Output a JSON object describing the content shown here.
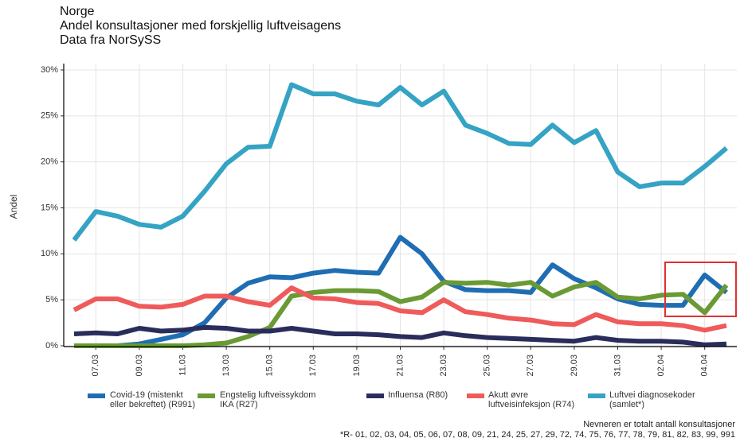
{
  "chart_data": {
    "type": "line",
    "title": "Norge",
    "subtitle": "Andel konsultasjoner med forskjellig luftveisagens",
    "source": "Data fra NorSySS",
    "y_label": "Andel",
    "categories": [
      null,
      "07.03",
      null,
      "09.03",
      null,
      "11.03",
      null,
      "13.03",
      null,
      "15.03",
      null,
      "17.03",
      null,
      "19.03",
      null,
      "21.03",
      null,
      "23.03",
      null,
      "25.03",
      null,
      "27.03",
      null,
      "29.03",
      null,
      "31.03",
      null,
      "02.04",
      null,
      "04.04",
      null
    ],
    "ylim": [
      0,
      30
    ],
    "yticks": [
      {
        "value": 0,
        "label": "0%"
      },
      {
        "value": 5,
        "label": "5%"
      },
      {
        "value": 10,
        "label": "10%"
      },
      {
        "value": 15,
        "label": "15%"
      },
      {
        "value": 20,
        "label": "20%"
      },
      {
        "value": 25,
        "label": "25%"
      },
      {
        "value": 30,
        "label": "30%"
      }
    ],
    "grid": true,
    "series": [
      {
        "name": "Covid-19 (mistenkt\neller bekreftet) (R991)",
        "color": "#1f6db3",
        "values": [
          0,
          0,
          0,
          0.2,
          0.7,
          1.2,
          2.5,
          5.2,
          6.8,
          7.5,
          7.4,
          7.9,
          8.2,
          8.0,
          7.9,
          11.8,
          10.0,
          7.0,
          6.1,
          6.0,
          6.0,
          5.8,
          8.8,
          7.3,
          6.3,
          5.1,
          4.5,
          4.4,
          4.4,
          7.7,
          5.8
        ]
      },
      {
        "name": "Engstelig luftveissykdom\nIKA (R27)",
        "color": "#6a9a34",
        "values": [
          0,
          0,
          0,
          0,
          0,
          0,
          0.1,
          0.3,
          1.0,
          2.0,
          5.4,
          5.8,
          6.0,
          6.0,
          5.9,
          4.8,
          5.3,
          6.9,
          6.8,
          6.9,
          6.6,
          6.9,
          5.4,
          6.4,
          6.9,
          5.3,
          5.1,
          5.5,
          5.6,
          3.6,
          6.6
        ]
      },
      {
        "name": "Influensa (R80)",
        "color": "#2a2d5c",
        "values": [
          1.3,
          1.4,
          1.3,
          1.9,
          1.6,
          1.7,
          2.0,
          1.9,
          1.6,
          1.6,
          1.9,
          1.6,
          1.3,
          1.3,
          1.2,
          1.0,
          0.9,
          1.4,
          1.1,
          0.9,
          0.8,
          0.7,
          0.6,
          0.5,
          0.9,
          0.6,
          0.5,
          0.5,
          0.4,
          0.1,
          0.2
        ]
      },
      {
        "name": "Akutt øvre\nluftveisinfeksjon (R74)",
        "color": "#ef5b5b",
        "values": [
          3.9,
          5.1,
          5.1,
          4.3,
          4.2,
          4.5,
          5.4,
          5.4,
          4.8,
          4.4,
          6.3,
          5.2,
          5.1,
          4.7,
          4.6,
          3.8,
          3.6,
          5.0,
          3.7,
          3.4,
          3.0,
          2.8,
          2.4,
          2.3,
          3.4,
          2.6,
          2.4,
          2.4,
          2.2,
          1.7,
          2.2
        ]
      },
      {
        "name": "Luftvei diagnosekoder\n(samlet*)",
        "color": "#35a3c4",
        "values": [
          11.5,
          14.6,
          14.1,
          13.2,
          12.9,
          14.1,
          16.8,
          19.8,
          21.6,
          21.7,
          28.4,
          27.4,
          27.4,
          26.6,
          26.2,
          28.1,
          26.2,
          27.7,
          24.0,
          23.1,
          22.0,
          21.9,
          24.0,
          22.1,
          23.4,
          18.9,
          17.3,
          17.7,
          17.7,
          19.5,
          21.5
        ]
      }
    ],
    "notes": [
      "Nevneren er totalt antall konsultasjoner",
      "*R- 01, 02, 03, 04, 05, 06, 07, 08, 09, 21, 24, 25, 27, 29, 72, 74, 75, 76, 77, 78, 79, 81, 82, 83, 99, 991"
    ]
  }
}
